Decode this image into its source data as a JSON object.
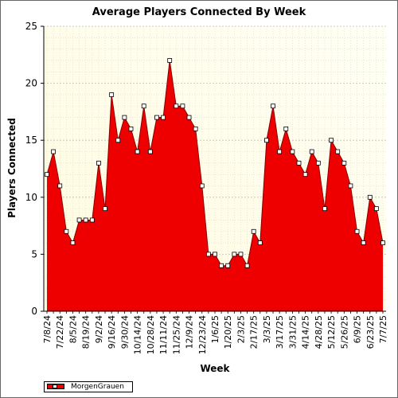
{
  "chart_data": {
    "type": "area",
    "title": "Average Players Connected By Week",
    "xlabel": "Week",
    "ylabel": "Players Connected",
    "ylim": [
      0,
      25
    ],
    "yticks": [
      0,
      5,
      10,
      15,
      20,
      25
    ],
    "grid": true,
    "legend_position": "bottom-left",
    "colors": {
      "fill": "#ee0000",
      "line": "#880000",
      "marker_fill": "#ffffff",
      "plot_bg_start": "#fffbe0",
      "plot_bg_end": "#fffff4"
    },
    "x_tick_labels": [
      "7/8/24",
      "7/22/24",
      "8/5/24",
      "8/19/24",
      "9/2/24",
      "9/16/24",
      "9/30/24",
      "10/14/24",
      "10/28/24",
      "11/11/24",
      "11/25/24",
      "12/9/24",
      "12/23/24",
      "1/6/25",
      "1/20/25",
      "2/3/25",
      "2/17/25",
      "3/3/25",
      "3/17/25",
      "3/31/25",
      "4/14/25",
      "4/28/25",
      "5/12/25",
      "5/26/25",
      "6/9/25",
      "6/23/25",
      "7/7/25"
    ],
    "series": [
      {
        "name": "MorgenGrauen",
        "values": [
          12,
          14,
          11,
          7,
          6,
          8,
          8,
          8,
          13,
          9,
          19,
          15,
          17,
          16,
          14,
          18,
          14,
          17,
          17,
          22,
          18,
          18,
          17,
          16,
          11,
          5,
          5,
          4,
          4,
          5,
          5,
          4,
          7,
          6,
          15,
          18,
          14,
          16,
          14,
          13,
          12,
          14,
          13,
          9,
          15,
          14,
          13,
          11,
          7,
          6,
          10,
          9,
          6
        ]
      }
    ]
  }
}
